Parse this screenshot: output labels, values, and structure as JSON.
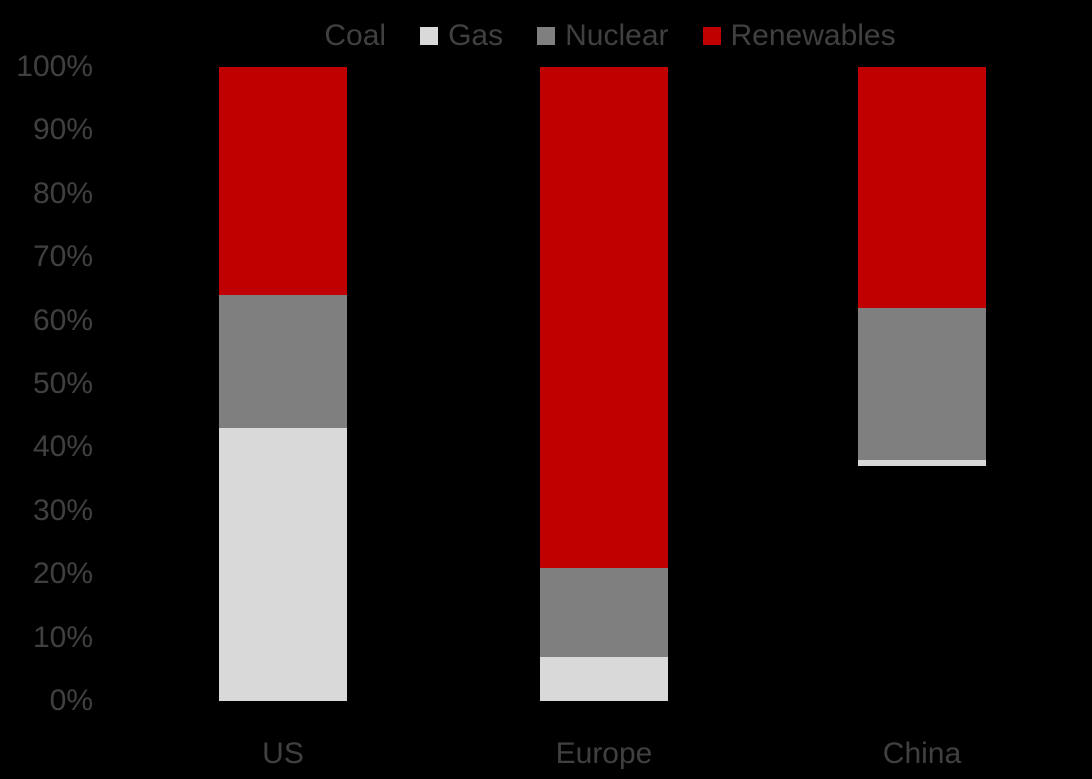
{
  "chart_data": {
    "type": "bar",
    "variant": "stacked-100-percent-column",
    "title": "",
    "categories": [
      "US",
      "Europe",
      "China"
    ],
    "series": [
      {
        "name": "Coal",
        "color": "#000000",
        "values": [
          0,
          0,
          37
        ]
      },
      {
        "name": "Gas",
        "color": "#D9D9D9",
        "values": [
          43,
          7,
          1
        ]
      },
      {
        "name": "Nuclear",
        "color": "#7F7F7F",
        "values": [
          21,
          14,
          24
        ]
      },
      {
        "name": "Renewables",
        "color": "#C00000",
        "values": [
          36,
          79,
          38
        ]
      }
    ],
    "y_axis": {
      "ticks": [
        "0%",
        "10%",
        "20%",
        "30%",
        "40%",
        "50%",
        "60%",
        "70%",
        "80%",
        "90%",
        "100%"
      ],
      "min": 0,
      "max": 100
    },
    "legend": {
      "position": "top",
      "labels": [
        "Coal",
        "Gas",
        "Nuclear",
        "Renewables"
      ]
    },
    "grid": false,
    "colors": {
      "background": "#000000",
      "label_text": "#404040"
    }
  }
}
